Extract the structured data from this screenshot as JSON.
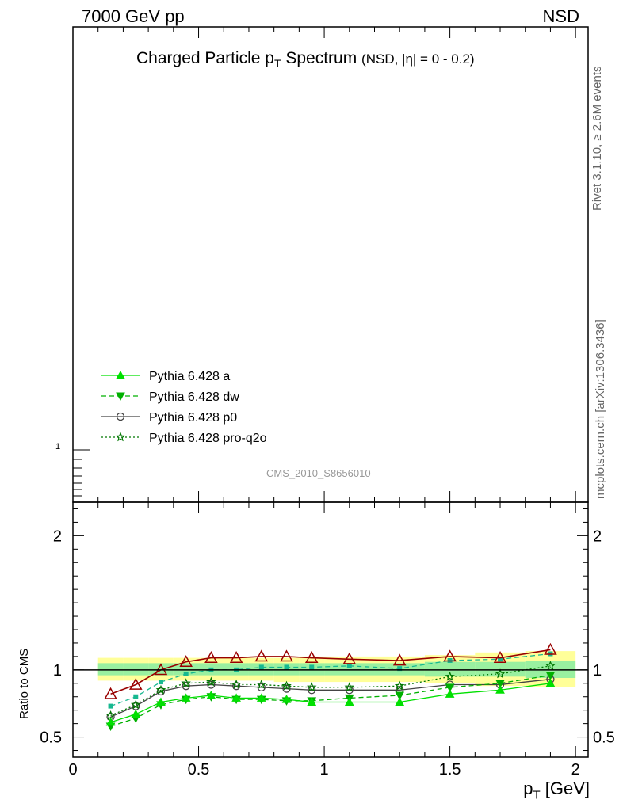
{
  "header": {
    "left": "7000 GeV pp",
    "right": "NSD"
  },
  "side_labels": {
    "rivet": "Rivet 3.1.10, ≥ 2.6M events",
    "mcplots": "mcplots.cern.ch [arXiv:1306.3436]"
  },
  "chart_data": {
    "type": "line",
    "title": "Charged Particle p_T Spectrum",
    "title_main": "Charged Particle p",
    "title_sub": "T",
    "title_rest": " Spectrum",
    "title_suffix": "(NSD, |η| =   0 - 0.2)",
    "analysis_label": "CMS_2010_S8656010",
    "xlabel": "p",
    "xlabel_sub": "T",
    "xlabel_unit": " [GeV]",
    "ylabel_ratio": "Ratio to CMS",
    "xlim": [
      0,
      2.05
    ],
    "main_panel": {
      "ytick_labels": [
        "1"
      ]
    },
    "ratio_panel": {
      "ylim": [
        0.35,
        2.25
      ],
      "yticks": [
        0.5,
        1,
        2
      ],
      "ytick_labels": [
        "0.5",
        "1",
        "2"
      ],
      "reference_line": 1
    },
    "xticks": [
      0,
      0.5,
      1,
      1.5,
      2
    ],
    "xtick_labels": [
      "0",
      "0.5",
      "1",
      "1.5",
      "2"
    ],
    "x": [
      0.15,
      0.25,
      0.35,
      0.45,
      0.55,
      0.65,
      0.75,
      0.85,
      0.95,
      1.1,
      1.3,
      1.5,
      1.7,
      1.9
    ],
    "uncertainty_bands": {
      "bins": [
        [
          0.1,
          0.2
        ],
        [
          0.2,
          0.3
        ],
        [
          0.3,
          0.4
        ],
        [
          0.4,
          0.5
        ],
        [
          0.5,
          0.6
        ],
        [
          0.6,
          0.7
        ],
        [
          0.7,
          0.8
        ],
        [
          0.8,
          0.9
        ],
        [
          0.9,
          1.0
        ],
        [
          1.0,
          1.2
        ],
        [
          1.2,
          1.4
        ],
        [
          1.4,
          1.6
        ],
        [
          1.6,
          1.8
        ],
        [
          1.8,
          2.0
        ]
      ],
      "outer_lo": [
        0.92,
        0.92,
        0.92,
        0.92,
        0.92,
        0.92,
        0.92,
        0.91,
        0.91,
        0.91,
        0.91,
        0.9,
        0.88,
        0.87
      ],
      "outer_hi": [
        1.09,
        1.09,
        1.09,
        1.09,
        1.09,
        1.09,
        1.09,
        1.09,
        1.1,
        1.1,
        1.1,
        1.11,
        1.13,
        1.14
      ],
      "inner_lo": [
        0.96,
        0.96,
        0.96,
        0.96,
        0.96,
        0.96,
        0.96,
        0.96,
        0.96,
        0.96,
        0.96,
        0.95,
        0.95,
        0.94
      ],
      "inner_hi": [
        1.05,
        1.05,
        1.05,
        1.05,
        1.05,
        1.05,
        1.05,
        1.05,
        1.05,
        1.05,
        1.05,
        1.06,
        1.06,
        1.07
      ]
    },
    "series": [
      {
        "name": "Pythia 6.428 a",
        "color": "#00e000",
        "dash": "",
        "marker": "triangle-up",
        "values": [
          0.61,
          0.67,
          0.76,
          0.79,
          0.81,
          0.79,
          0.79,
          0.78,
          0.76,
          0.76,
          0.76,
          0.82,
          0.85,
          0.9
        ],
        "legend": true
      },
      {
        "name": "Pythia 6.428 dw",
        "color": "#00b000",
        "dash": "6,4",
        "marker": "triangle-down",
        "values": [
          0.58,
          0.64,
          0.74,
          0.78,
          0.8,
          0.78,
          0.78,
          0.77,
          0.77,
          0.79,
          0.81,
          0.87,
          0.9,
          0.96
        ],
        "legend": true
      },
      {
        "name": "Pythia 6.428 p0",
        "color": "#444444",
        "dash": "",
        "marker": "circle-open",
        "values": [
          0.65,
          0.73,
          0.84,
          0.88,
          0.89,
          0.88,
          0.87,
          0.86,
          0.85,
          0.85,
          0.85,
          0.89,
          0.89,
          0.93
        ],
        "legend": true
      },
      {
        "name": "Pythia 6.428 pro-q2o",
        "color": "#007700",
        "dash": "2,3",
        "marker": "star-open",
        "values": [
          0.66,
          0.74,
          0.85,
          0.9,
          0.91,
          0.89,
          0.89,
          0.88,
          0.87,
          0.87,
          0.88,
          0.95,
          0.97,
          1.03
        ],
        "legend": true
      },
      {
        "name": "",
        "color": "#17b890",
        "dash": "6,4",
        "marker": "square",
        "values": [
          0.73,
          0.8,
          0.91,
          0.97,
          1.0,
          1.0,
          1.02,
          1.02,
          1.02,
          1.03,
          1.01,
          1.07,
          1.08,
          1.12
        ],
        "legend": false
      },
      {
        "name": "",
        "color": "#990000",
        "dash": "",
        "marker": "triangle-up-open",
        "values": [
          0.82,
          0.89,
          1.0,
          1.06,
          1.09,
          1.09,
          1.1,
          1.1,
          1.09,
          1.08,
          1.07,
          1.1,
          1.09,
          1.15
        ],
        "legend": false
      }
    ]
  }
}
